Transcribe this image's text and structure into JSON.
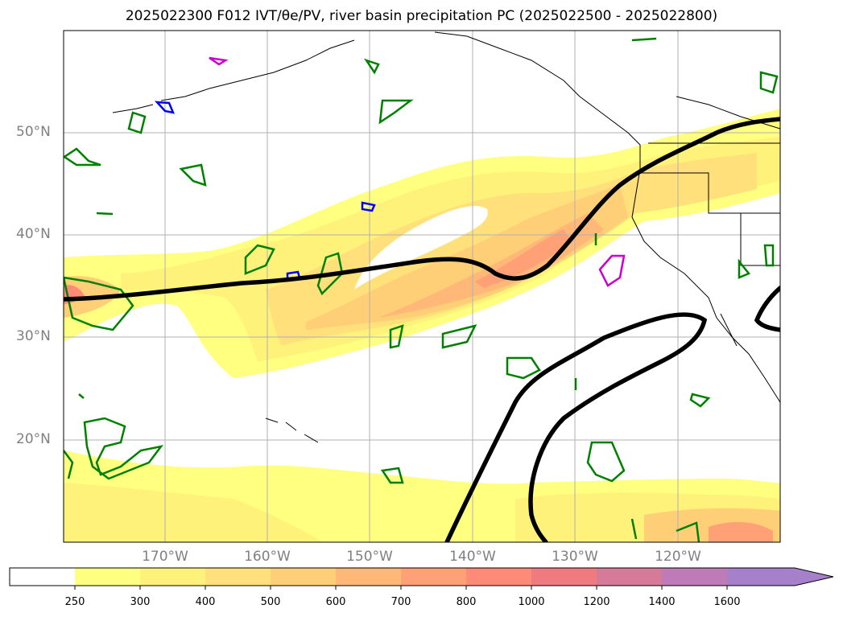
{
  "title": "2025022300 F012 IVT/θe/PV, river basin precipitation PC (2025022500 - 2025022800)",
  "map": {
    "lat_labels": [
      "50°N",
      "40°N",
      "30°N",
      "20°N"
    ],
    "lon_labels": [
      "170°W",
      "160°W",
      "150°W",
      "140°W",
      "130°W",
      "120°W"
    ],
    "colors": {
      "ivt_levels": [
        "#ffff80",
        "#fff27a",
        "#ffe07a",
        "#ffcf78",
        "#ffb877",
        "#ffa076",
        "#ff8a78",
        "#f07a80",
        "#d67a9a",
        "#bf7ab8",
        "#a780cc"
      ],
      "pv_contour": "#000000",
      "theta_e_contour": "#008000",
      "precip_blue": "#0000ff",
      "precip_magenta": "#cc00cc",
      "coastline": "#000000",
      "gridline": "#b0b0b0"
    }
  },
  "colorbar": {
    "tick_labels": [
      "250",
      "300",
      "400",
      "500",
      "600",
      "700",
      "800",
      "1000",
      "1200",
      "1400",
      "1600"
    ],
    "extend": "max"
  }
}
